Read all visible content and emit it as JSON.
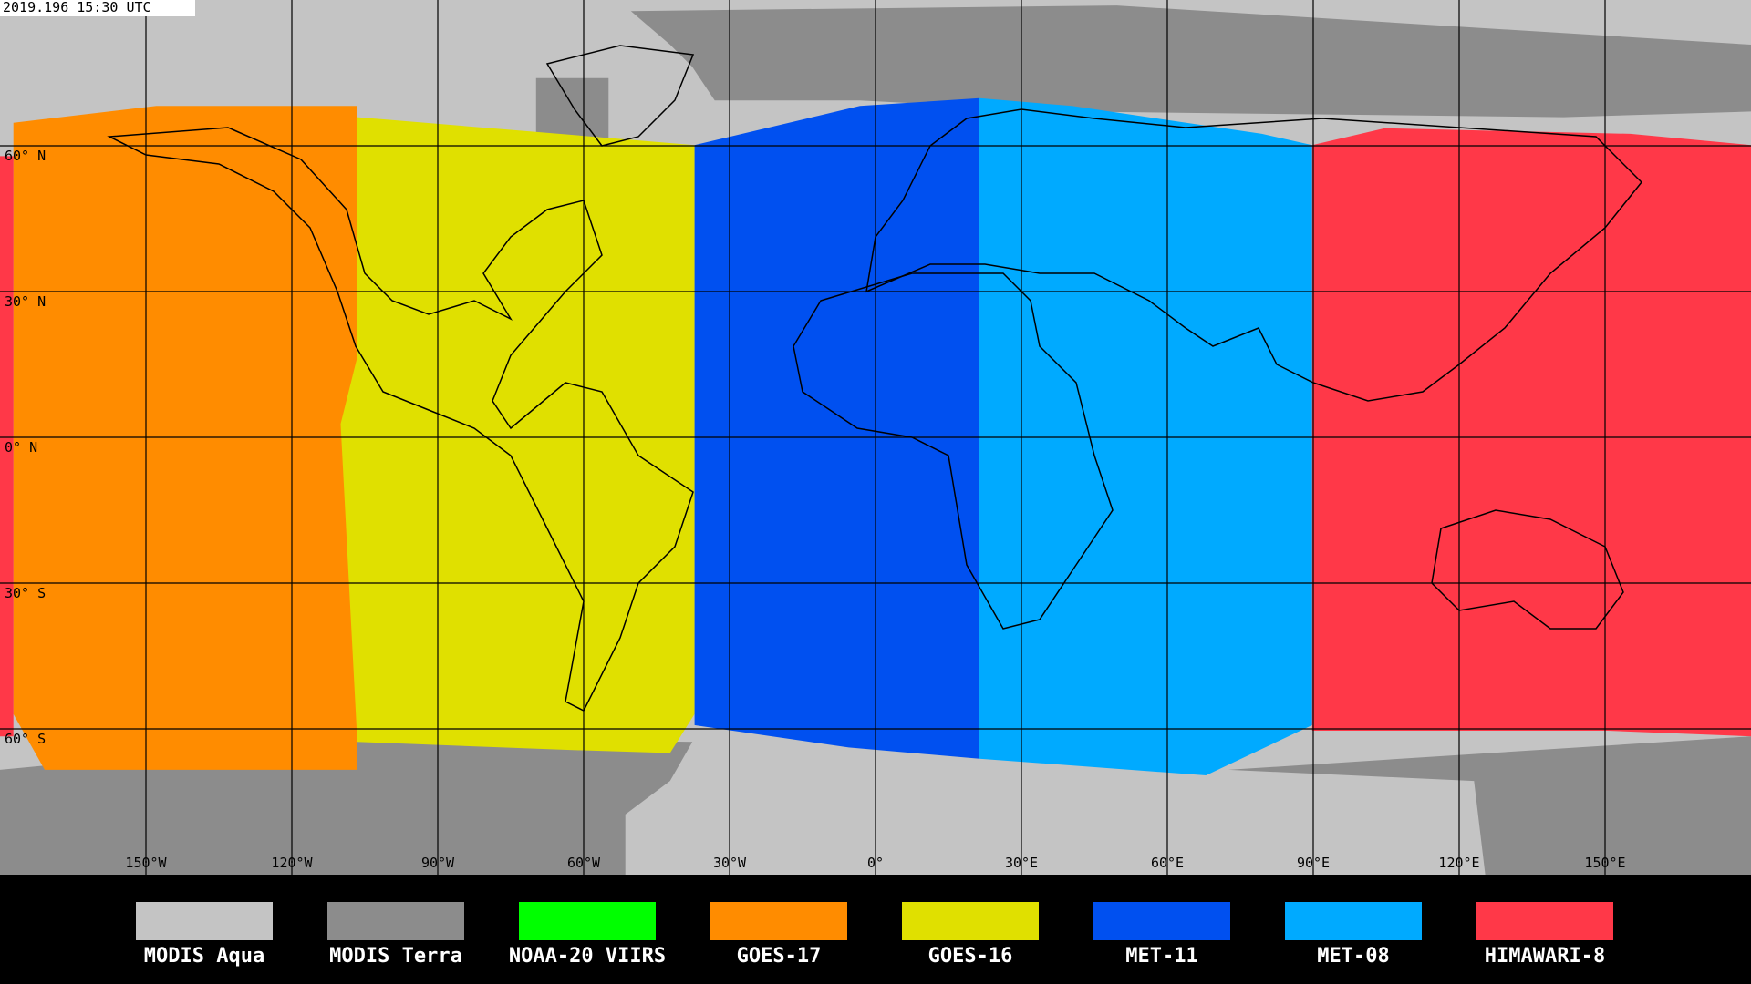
{
  "timestamp": "2019.196 15:30 UTC",
  "map": {
    "lat_labels": [
      "60° N",
      "30° N",
      "0° N",
      "30° S",
      "60° S"
    ],
    "lon_labels": [
      "150°W",
      "120°W",
      "90°W",
      "60°W",
      "30°W",
      "0°",
      "30°E",
      "60°E",
      "90°E",
      "120°E",
      "150°E"
    ]
  },
  "legend": [
    {
      "name": "MODIS Aqua",
      "color": "#c4c4c4"
    },
    {
      "name": "MODIS Terra",
      "color": "#8c8c8c"
    },
    {
      "name": "NOAA-20 VIIRS",
      "color": "#00ff00"
    },
    {
      "name": "GOES-17",
      "color": "#ff8c00"
    },
    {
      "name": "GOES-16",
      "color": "#e0e000"
    },
    {
      "name": "MET-11",
      "color": "#0050f0"
    },
    {
      "name": "MET-08",
      "color": "#00aaff"
    },
    {
      "name": "HIMAWARI-8",
      "color": "#ff3848"
    }
  ]
}
